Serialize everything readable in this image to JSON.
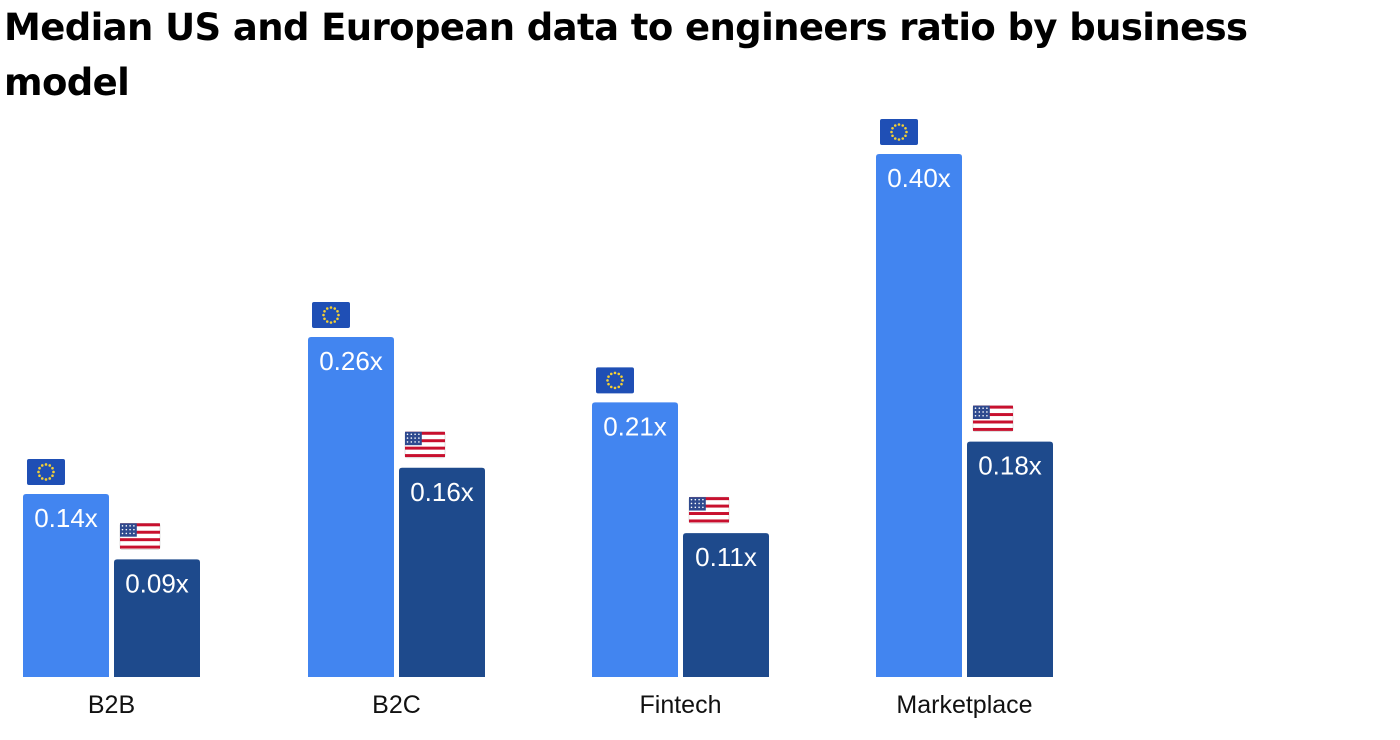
{
  "title": "Median US and European data to engineers ratio by business model",
  "colors": {
    "europe": "#4285f0",
    "us": "#1e4a8c",
    "eu_flag_blue": "#1f4fb5",
    "eu_flag_star": "#f5d033",
    "us_flag_red": "#c8102e",
    "us_flag_blue": "#2f4a8f"
  },
  "chart_data": {
    "type": "bar",
    "categories": [
      "B2B",
      "B2C",
      "Fintech",
      "Marketplace"
    ],
    "series": [
      {
        "icon": "eu-flag-icon",
        "values": [
          0.14,
          0.26,
          0.21,
          0.4
        ],
        "labels": [
          "0.14x",
          "0.26x",
          "0.21x",
          "0.40x"
        ]
      },
      {
        "icon": "us-flag-icon",
        "values": [
          0.09,
          0.16,
          0.11,
          0.18
        ],
        "labels": [
          "0.09x",
          "0.16x",
          "0.11x",
          "0.18x"
        ]
      }
    ],
    "xlabel": "",
    "ylabel": "",
    "ylim": [
      0,
      0.4
    ],
    "grid": false,
    "legend": "none"
  }
}
